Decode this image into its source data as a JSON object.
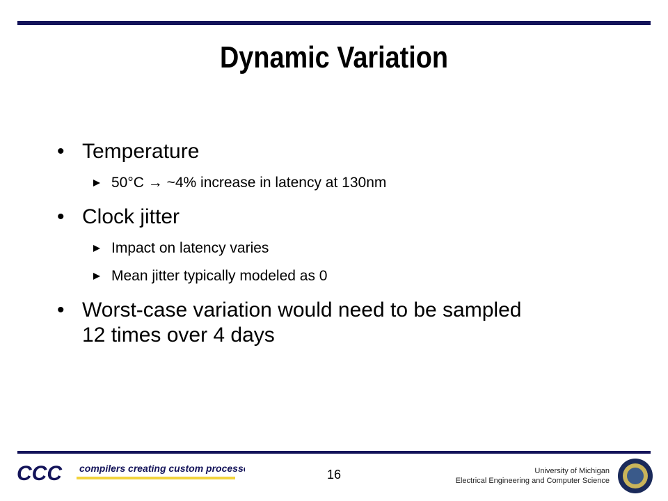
{
  "slide": {
    "title": "Dynamic Variation",
    "bullets": [
      {
        "text": "Temperature",
        "sub": [
          "50°C → ~4% increase in latency at 130nm"
        ]
      },
      {
        "text": "Clock jitter",
        "sub": [
          "Impact on latency varies",
          "Mean jitter typically modeled as 0"
        ]
      },
      {
        "text": "Worst-case variation would need to be sampled 12 times over 4 days",
        "sub": []
      }
    ]
  },
  "footer": {
    "logo": "CCC",
    "tagline": "compilers creating custom processors",
    "page_number": "16",
    "institution": "University of Michigan",
    "department": "Electrical Engineering and Computer Science"
  }
}
